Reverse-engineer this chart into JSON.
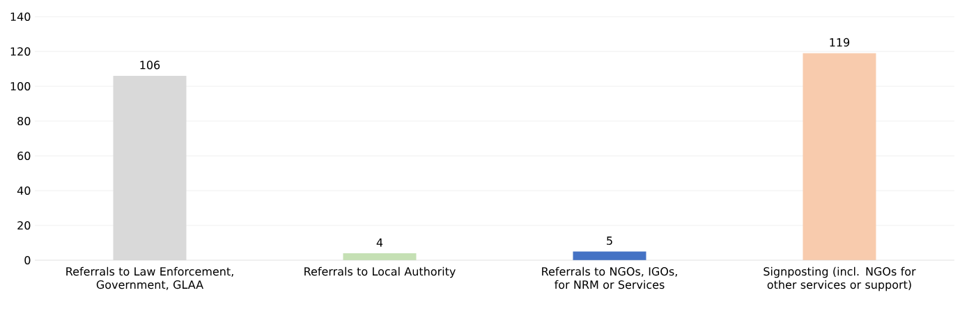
{
  "chart_data": {
    "type": "bar",
    "categories": [
      "Referrals to Law Enforcement, Government, GLAA",
      "Referrals to Local Authority",
      "Referrals to NGOs, IGOs, for NRM or Services",
      "Signposting (incl. NGOs for other services or support)"
    ],
    "values": [
      106,
      4,
      5,
      119
    ],
    "colors": [
      "#d9d9d9",
      "#c5e0b4",
      "#4472c4",
      "#f8cbad"
    ],
    "ylim": [
      0,
      140
    ],
    "yticks": [
      0,
      20,
      40,
      60,
      80,
      100,
      120,
      140
    ],
    "grid": "y",
    "data_labels": true
  }
}
